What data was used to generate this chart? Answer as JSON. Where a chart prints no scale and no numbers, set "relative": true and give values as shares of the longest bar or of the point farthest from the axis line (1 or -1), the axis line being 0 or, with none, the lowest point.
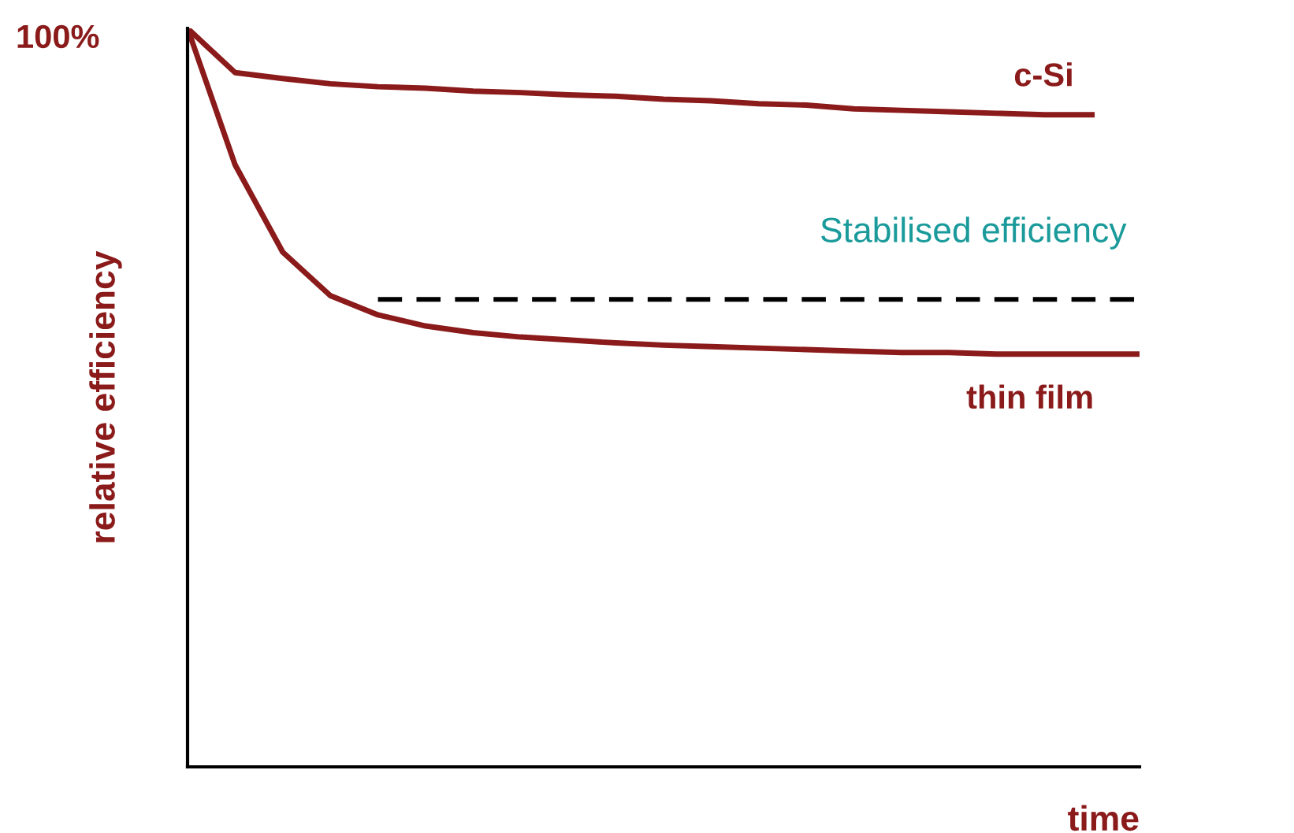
{
  "chart_data": {
    "type": "line",
    "relative": true,
    "xlabel": "time",
    "ylabel": "relative efficiency",
    "categories": [
      null,
      null,
      null,
      null,
      null,
      null,
      null,
      null,
      null,
      null,
      null,
      null,
      null,
      null,
      null,
      null,
      null,
      null,
      null,
      null,
      null
    ],
    "series": [
      {
        "name": "c-Si",
        "color": "#8b1a1a",
        "values": [
          1,
          0.94,
          0.932,
          0.925,
          0.921,
          0.919,
          0.915,
          0.913,
          0.91,
          0.908,
          0.904,
          0.902,
          0.898,
          0.896,
          0.891,
          0.889,
          0.887,
          0.885,
          0.883,
          0.883,
          null
        ]
      },
      {
        "name": "thin film",
        "color": "#8b1a1a",
        "values": [
          1,
          0.815,
          0.697,
          0.638,
          0.612,
          0.597,
          0.588,
          0.582,
          0.578,
          0.574,
          0.571,
          0.569,
          0.567,
          0.565,
          0.563,
          0.561,
          0.561,
          0.559,
          0.559,
          0.559,
          0.559
        ]
      },
      {
        "color": "#000000",
        "line_style": "dashed",
        "values": [
          null,
          null,
          null,
          null,
          0.633,
          0.633,
          0.633,
          0.633,
          0.633,
          0.633,
          0.633,
          0.633,
          0.633,
          0.633,
          0.633,
          0.633,
          0.633,
          0.633,
          0.633,
          0.633,
          0.633
        ]
      }
    ],
    "annotations": [
      "100%",
      "Stabilised efficiency"
    ],
    "grid": false,
    "legend": false,
    "marker": "none"
  }
}
